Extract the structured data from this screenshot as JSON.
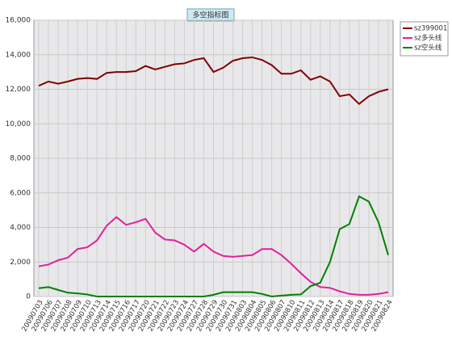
{
  "chart_data": {
    "type": "line",
    "title": "多空指标图",
    "categories": [
      "20090703",
      "20090706",
      "20090707",
      "20090708",
      "20090709",
      "20090710",
      "20090713",
      "20090714",
      "20090715",
      "20090716",
      "20090717",
      "20090720",
      "20090721",
      "20090722",
      "20090723",
      "20090724",
      "20090727",
      "20090728",
      "20090729",
      "20090730",
      "20090731",
      "20090803",
      "20090804",
      "20090805",
      "20090806",
      "20090807",
      "20090810",
      "20090811",
      "20090812",
      "20090813",
      "20090814",
      "20090817",
      "20090818",
      "20090819",
      "20090820",
      "20090821",
      "20090824"
    ],
    "series": [
      {
        "name": "sz399001",
        "color": "#800000",
        "values": [
          12200,
          12450,
          12320,
          12450,
          12600,
          12650,
          12600,
          12950,
          13000,
          13000,
          13050,
          13350,
          13150,
          13300,
          13450,
          13500,
          13700,
          13800,
          13000,
          13250,
          13650,
          13800,
          13850,
          13700,
          13400,
          12900,
          12900,
          13100,
          12550,
          12750,
          12450,
          11600,
          11700,
          11150,
          11600,
          11850,
          12000
        ]
      },
      {
        "name": "sz多头线",
        "color": "#e0209a",
        "values": [
          1750,
          1850,
          2100,
          2250,
          2750,
          2850,
          3250,
          4100,
          4600,
          4150,
          4300,
          4500,
          3700,
          3300,
          3250,
          3000,
          2600,
          3050,
          2600,
          2350,
          2300,
          2350,
          2400,
          2750,
          2750,
          2400,
          1900,
          1350,
          850,
          550,
          500,
          300,
          150,
          100,
          100,
          150,
          250
        ]
      },
      {
        "name": "sz空头线",
        "color": "#008000",
        "values": [
          480,
          550,
          380,
          220,
          180,
          120,
          0,
          0,
          0,
          0,
          0,
          0,
          0,
          0,
          0,
          0,
          0,
          0,
          100,
          250,
          250,
          250,
          250,
          150,
          0,
          50,
          100,
          120,
          600,
          800,
          2000,
          3900,
          4200,
          5800,
          5500,
          4300,
          2400
        ]
      }
    ],
    "ylim": [
      0,
      16000
    ],
    "yticks": [
      0,
      {
        "value": 2000,
        "label": "2,000"
      },
      {
        "value": 4000,
        "label": "4,000"
      },
      {
        "value": 6000,
        "label": "6,000"
      },
      {
        "value": 8000,
        "label": "8,000"
      },
      {
        "value": 10000,
        "label": "10,000"
      },
      {
        "value": 12000,
        "label": "12,000"
      },
      {
        "value": 14000,
        "label": "14,000"
      },
      {
        "value": 16000,
        "label": "16,000"
      }
    ],
    "grid": true
  }
}
